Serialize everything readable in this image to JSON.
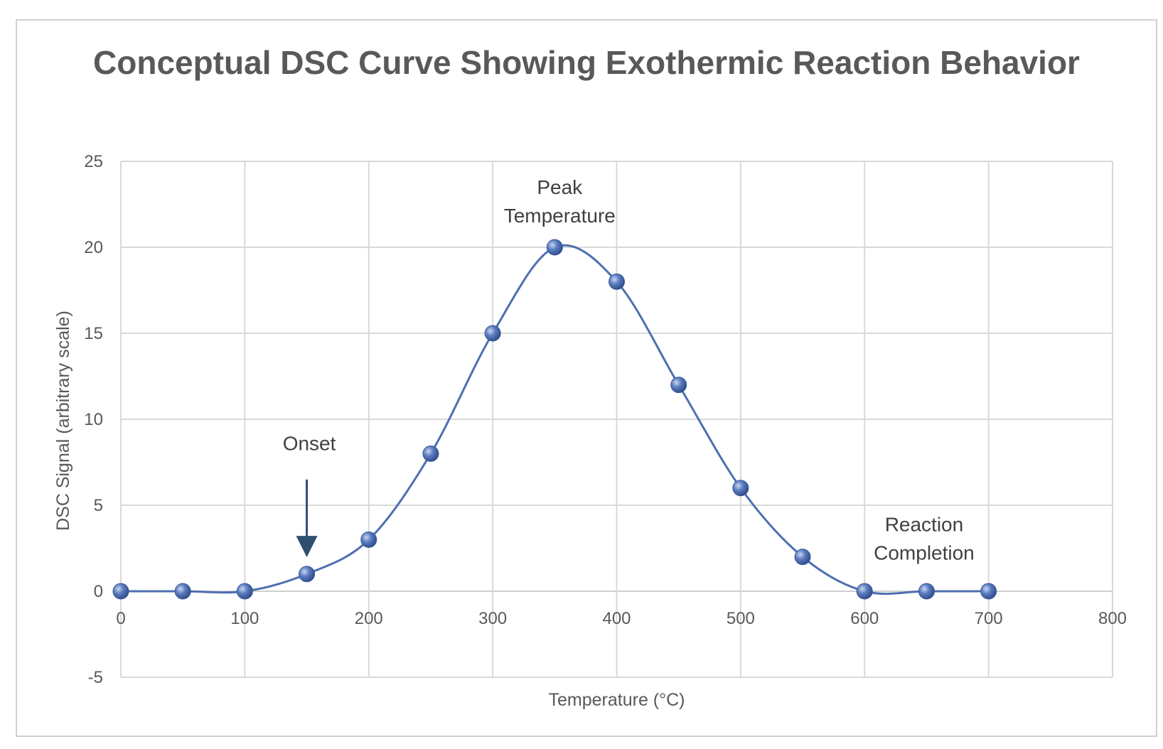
{
  "chart_data": {
    "type": "scatter",
    "title": "Conceptual DSC Curve Showing Exothermic Reaction Behavior",
    "xlabel": "Temperature (°C)",
    "ylabel": "DSC Signal (arbitrary scale)",
    "xlim": [
      0,
      800
    ],
    "ylim": [
      -5,
      25
    ],
    "x_ticks": [
      0,
      100,
      200,
      300,
      400,
      500,
      600,
      700,
      800
    ],
    "y_ticks": [
      -5,
      0,
      5,
      10,
      15,
      20,
      25
    ],
    "grid": true,
    "smooth_line": true,
    "series": [
      {
        "x": [
          0,
          50,
          100,
          150,
          200,
          250,
          300,
          350,
          400,
          450,
          500,
          550,
          600,
          650,
          700
        ],
        "y": [
          0,
          0,
          0,
          1,
          3,
          8,
          15,
          20,
          18,
          12,
          6,
          2,
          0,
          0,
          0
        ],
        "color": "#4f6fb0"
      }
    ],
    "annotations": [
      {
        "lines": [
          "Onset"
        ],
        "x": 152,
        "y": 8.2,
        "arrow": {
          "from": [
            150,
            6.5
          ],
          "to": [
            150,
            2.6
          ]
        }
      },
      {
        "lines": [
          "Peak",
          "Temperature"
        ],
        "x": 354,
        "y": 23.1
      },
      {
        "lines": [
          "Reaction",
          "Completion"
        ],
        "x": 648,
        "y": 3.5
      }
    ]
  }
}
